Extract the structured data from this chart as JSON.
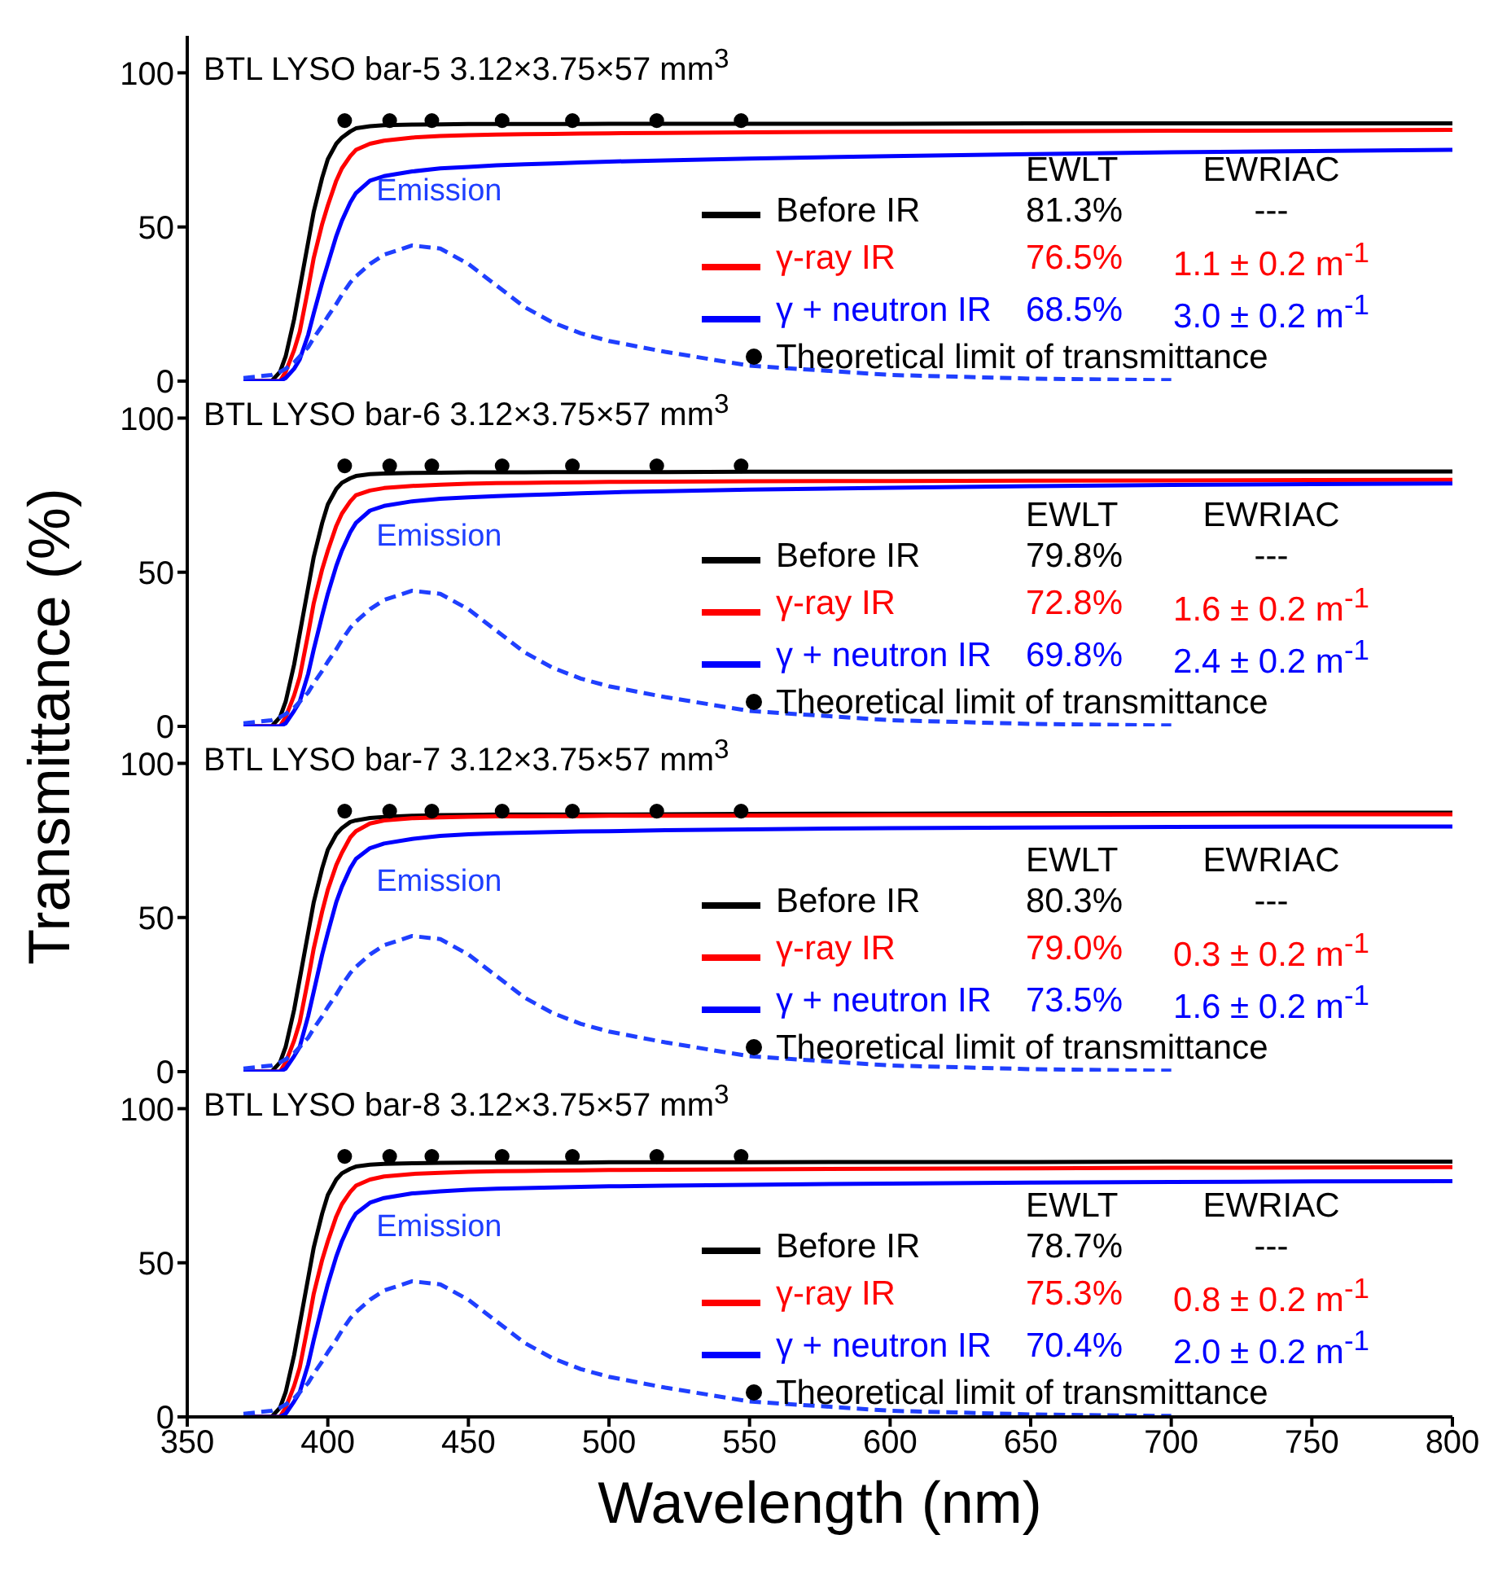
{
  "chart_data": [
    {
      "type": "line",
      "title": "BTL LYSO bar-5  3.12×3.75×57  mm$^{3}$",
      "ylabel": "Transmittance (%)",
      "xlim": [
        350,
        800
      ],
      "xticks": [
        350,
        400,
        450,
        500,
        550,
        600,
        650,
        700,
        750,
        800
      ],
      "ylim": [
        0,
        112
      ],
      "yticks": [
        0,
        50,
        100
      ],
      "tick_labels": "y",
      "legend": "bottom right",
      "annotations": [
        "EWLT",
        "EWRIAC",
        "81.3%",
        "---",
        "76.5%",
        "1.1 ± 0.2 m$^{-1}$",
        "68.5%",
        "3.0 ± 0.2 m$^{-1}$"
      ],
      "x": [
        370,
        380,
        383,
        385,
        388,
        390,
        393,
        395,
        398,
        400,
        403,
        405,
        408,
        410,
        415,
        420,
        430,
        440,
        450,
        460,
        470,
        480,
        490,
        500,
        520,
        550,
        600,
        650,
        700,
        750,
        800
      ],
      "series": [
        {
          "name": "Before IR",
          "color": "#000000",
          "values": [
            0,
            0,
            3,
            8,
            20,
            30,
            45,
            55,
            66,
            72,
            77,
            79,
            81,
            82,
            82.7,
            83,
            83.2,
            83.3,
            83.4,
            83.4,
            83.4,
            83.4,
            83.4,
            83.5,
            83.5,
            83.5,
            83.5,
            83.6,
            83.6,
            83.6,
            83.6
          ]
        },
        {
          "name": "γ-ray IR",
          "color": "#ff0000",
          "values": [
            0,
            0,
            0,
            3,
            10,
            16,
            30,
            40,
            51,
            57,
            65,
            69,
            73,
            75,
            77,
            78,
            79,
            79.5,
            79.8,
            80,
            80.1,
            80.2,
            80.3,
            80.4,
            80.5,
            80.7,
            80.9,
            81,
            81.2,
            81.3,
            81.5
          ]
        },
        {
          "name": "γ + neutron IR",
          "color": "#0000ff",
          "values": [
            0,
            0,
            0,
            1,
            4,
            7,
            15,
            22,
            32,
            38,
            47,
            52,
            58,
            61,
            65,
            66.5,
            68,
            69,
            69.5,
            70,
            70.3,
            70.6,
            70.9,
            71.2,
            71.6,
            72.2,
            73,
            73.6,
            74.2,
            74.6,
            75
          ]
        },
        {
          "name": "Theoretical limit of transmittance",
          "type": "scatter",
          "marker": "circle",
          "color": "#000000",
          "x": [
            406,
            422,
            437,
            462,
            487,
            517,
            547
          ],
          "values": [
            84.5,
            84.5,
            84.5,
            84.5,
            84.5,
            84.5,
            84.5
          ]
        },
        {
          "name": "Emission",
          "color": "#1f3fff",
          "line_style": "dashed",
          "values": [
            1,
            2,
            3,
            4,
            6,
            8,
            11,
            14,
            18,
            21,
            25,
            28,
            32,
            34,
            38,
            41,
            44,
            43,
            38,
            31,
            24,
            19,
            15.5,
            13,
            9.5,
            5,
            2,
            0.8,
            0.3,
            null,
            null
          ]
        }
      ]
    },
    {
      "type": "line",
      "title": "BTL LYSO bar-6  3.12×3.75×57  mm$^{3}$",
      "xlim": [
        350,
        800
      ],
      "xticks": [
        350,
        400,
        450,
        500,
        550,
        600,
        650,
        700,
        750,
        800
      ],
      "ylim": [
        0,
        112
      ],
      "yticks": [
        0,
        50,
        100
      ],
      "tick_labels": "y",
      "legend": "bottom right",
      "annotations": [
        "EWLT",
        "EWRIAC",
        "79.8%",
        "---",
        "72.8%",
        "1.6 ± 0.2 m$^{-1}$",
        "69.8%",
        "2.4 ± 0.2 m$^{-1}$"
      ],
      "x": [
        370,
        380,
        383,
        385,
        388,
        390,
        393,
        395,
        398,
        400,
        403,
        405,
        408,
        410,
        415,
        420,
        430,
        440,
        450,
        460,
        470,
        480,
        490,
        500,
        520,
        550,
        600,
        650,
        700,
        750,
        800
      ],
      "series": [
        {
          "name": "Before IR",
          "color": "#000000",
          "values": [
            0,
            0,
            3,
            8,
            20,
            30,
            45,
            55,
            66,
            72,
            77,
            79,
            80.5,
            81.2,
            81.8,
            82,
            82.2,
            82.3,
            82.4,
            82.4,
            82.4,
            82.5,
            82.5,
            82.5,
            82.5,
            82.6,
            82.6,
            82.7,
            82.7,
            82.7,
            82.7
          ]
        },
        {
          "name": "γ-ray IR",
          "color": "#ff0000",
          "values": [
            0,
            0,
            0,
            3,
            10,
            16,
            30,
            40,
            51,
            57,
            65,
            69,
            73,
            75,
            76.5,
            77.3,
            78,
            78.4,
            78.7,
            78.9,
            79,
            79.1,
            79.2,
            79.3,
            79.4,
            79.5,
            79.6,
            79.7,
            79.8,
            79.9,
            80
          ]
        },
        {
          "name": "γ + neutron IR",
          "color": "#0000ff",
          "values": [
            0,
            0,
            0,
            1,
            5,
            8,
            17,
            25,
            36,
            43,
            52,
            57,
            63,
            66,
            70,
            71.5,
            73,
            73.8,
            74.3,
            74.7,
            75,
            75.3,
            75.6,
            75.9,
            76.3,
            76.8,
            77.4,
            77.9,
            78.3,
            78.6,
            78.8
          ]
        },
        {
          "name": "Theoretical limit of transmittance",
          "type": "scatter",
          "marker": "circle",
          "color": "#000000",
          "x": [
            406,
            422,
            437,
            462,
            487,
            517,
            547
          ],
          "values": [
            84.5,
            84.5,
            84.5,
            84.5,
            84.5,
            84.5,
            84.5
          ]
        },
        {
          "name": "Emission",
          "color": "#1f3fff",
          "line_style": "dashed",
          "values": [
            1,
            2,
            3,
            4,
            6,
            8,
            11,
            14,
            18,
            21,
            25,
            28,
            32,
            34,
            38,
            41,
            44,
            43,
            38,
            31,
            24,
            19,
            15.5,
            13,
            9.5,
            5,
            2,
            0.8,
            0.3,
            null,
            null
          ]
        }
      ]
    },
    {
      "type": "line",
      "title": "BTL LYSO bar-7  3.12×3.75×57  mm$^{3}$",
      "xlim": [
        350,
        800
      ],
      "xticks": [
        350,
        400,
        450,
        500,
        550,
        600,
        650,
        700,
        750,
        800
      ],
      "ylim": [
        0,
        112
      ],
      "yticks": [
        0,
        50,
        100
      ],
      "tick_labels": "y",
      "legend": "bottom right",
      "annotations": [
        "EWLT",
        "EWRIAC",
        "80.3%",
        "---",
        "79.0%",
        "0.3 ± 0.2 m$^{-1}$",
        "73.5%",
        "1.6 ± 0.2 m$^{-1}$"
      ],
      "x": [
        370,
        380,
        383,
        385,
        388,
        390,
        393,
        395,
        398,
        400,
        403,
        405,
        408,
        410,
        415,
        420,
        430,
        440,
        450,
        460,
        470,
        480,
        490,
        500,
        520,
        550,
        600,
        650,
        700,
        750,
        800
      ],
      "series": [
        {
          "name": "Before IR",
          "color": "#000000",
          "values": [
            0,
            0,
            3,
            8,
            20,
            30,
            45,
            55,
            66,
            72,
            77,
            79,
            81,
            81.5,
            82.3,
            82.6,
            83,
            83.2,
            83.3,
            83.4,
            83.4,
            83.4,
            83.4,
            83.4,
            83.5,
            83.6,
            83.7,
            83.8,
            83.9,
            84,
            84
          ]
        },
        {
          "name": "γ-ray IR",
          "color": "#ff0000",
          "values": [
            0,
            0,
            0,
            3,
            10,
            16,
            30,
            40,
            52,
            59,
            67,
            71,
            76,
            78,
            80.5,
            81.5,
            82.2,
            82.5,
            82.7,
            82.8,
            82.8,
            82.9,
            82.9,
            83,
            83,
            83.1,
            83.2,
            83.3,
            83.4,
            83.5,
            83.5
          ]
        },
        {
          "name": "γ + neutron IR",
          "color": "#0000ff",
          "values": [
            0,
            0,
            0,
            1,
            5,
            8,
            18,
            26,
            38,
            45,
            55,
            60,
            66,
            69,
            72.5,
            74,
            75.5,
            76.5,
            77,
            77.3,
            77.5,
            77.7,
            77.9,
            78,
            78.3,
            78.6,
            79,
            79.2,
            79.4,
            79.5,
            79.5
          ]
        },
        {
          "name": "Theoretical limit of transmittance",
          "type": "scatter",
          "marker": "circle",
          "color": "#000000",
          "x": [
            406,
            422,
            437,
            462,
            487,
            517,
            547
          ],
          "values": [
            84.5,
            84.5,
            84.5,
            84.5,
            84.5,
            84.5,
            84.5
          ]
        },
        {
          "name": "Emission",
          "color": "#1f3fff",
          "line_style": "dashed",
          "values": [
            1,
            2,
            3,
            4,
            6,
            8,
            11,
            14,
            18,
            21,
            25,
            28,
            32,
            34,
            38,
            41,
            44,
            43,
            38,
            31,
            24,
            19,
            15.5,
            13,
            9.5,
            5,
            2,
            0.8,
            0.3,
            null,
            null
          ]
        }
      ]
    },
    {
      "type": "line",
      "title": "BTL LYSO bar-8  3.12×3.75×57  mm$^{3}$",
      "xlabel": "Wavelength (nm)",
      "xlim": [
        350,
        800
      ],
      "xticks": [
        350,
        400,
        450,
        500,
        550,
        600,
        650,
        700,
        750,
        800
      ],
      "ylim": [
        0,
        112
      ],
      "yticks": [
        0,
        50,
        100
      ],
      "legend": "bottom right",
      "annotations": [
        "EWLT",
        "EWRIAC",
        "78.7%",
        "---",
        "75.3%",
        "0.8 ± 0.2 m$^{-1}$",
        "70.4%",
        "2.0 ± 0.2 m$^{-1}$"
      ],
      "x": [
        370,
        380,
        383,
        385,
        388,
        390,
        393,
        395,
        398,
        400,
        403,
        405,
        408,
        410,
        415,
        420,
        430,
        440,
        450,
        460,
        470,
        480,
        490,
        500,
        520,
        550,
        600,
        650,
        700,
        750,
        800
      ],
      "series": [
        {
          "name": "Before IR",
          "color": "#000000",
          "values": [
            0,
            0,
            3,
            8,
            20,
            30,
            45,
            55,
            66,
            72,
            77,
            79,
            80.5,
            81.2,
            81.8,
            82.1,
            82.3,
            82.4,
            82.5,
            82.5,
            82.5,
            82.5,
            82.5,
            82.6,
            82.6,
            82.6,
            82.7,
            82.7,
            82.8,
            82.8,
            82.8
          ]
        },
        {
          "name": "γ-ray IR",
          "color": "#ff0000",
          "values": [
            0,
            0,
            0,
            3,
            10,
            16,
            30,
            40,
            51,
            57,
            65,
            69,
            73,
            75,
            77,
            78,
            78.8,
            79.2,
            79.5,
            79.7,
            79.8,
            79.9,
            80,
            80.1,
            80.2,
            80.3,
            80.5,
            80.6,
            80.8,
            80.9,
            81
          ]
        },
        {
          "name": "γ + neutron IR",
          "color": "#0000ff",
          "values": [
            0,
            0,
            0,
            1,
            5,
            8,
            17,
            25,
            36,
            43,
            52,
            57,
            63,
            66,
            69.5,
            71,
            72.5,
            73.2,
            73.7,
            74,
            74.2,
            74.4,
            74.6,
            74.8,
            75,
            75.3,
            75.7,
            76,
            76.2,
            76.4,
            76.5
          ]
        },
        {
          "name": "Theoretical limit of transmittance",
          "type": "scatter",
          "marker": "circle",
          "color": "#000000",
          "x": [
            406,
            422,
            437,
            462,
            487,
            517,
            547
          ],
          "values": [
            84.5,
            84.5,
            84.5,
            84.5,
            84.5,
            84.5,
            84.5
          ]
        },
        {
          "name": "Emission",
          "color": "#1f3fff",
          "line_style": "dashed",
          "values": [
            1,
            2,
            3,
            4,
            6,
            8,
            11,
            14,
            18,
            21,
            25,
            28,
            32,
            34,
            38,
            41,
            44,
            43,
            38,
            31,
            24,
            19,
            15.5,
            13,
            9.5,
            5,
            2,
            0.8,
            0.3,
            null,
            null
          ]
        }
      ]
    }
  ]
}
